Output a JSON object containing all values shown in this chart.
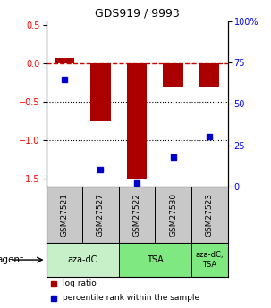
{
  "title": "GDS919 / 9993",
  "samples": [
    "GSM27521",
    "GSM27527",
    "GSM27522",
    "GSM27530",
    "GSM27523"
  ],
  "log_ratio": [
    0.08,
    -0.75,
    -1.5,
    -0.3,
    -0.3
  ],
  "percentile_rank": [
    65,
    10,
    2,
    18,
    30
  ],
  "ylim_left": [
    -1.6,
    0.55
  ],
  "ylim_right": [
    0,
    100
  ],
  "yticks_left": [
    0.5,
    0.0,
    -0.5,
    -1.0,
    -1.5
  ],
  "yticks_right": [
    100,
    75,
    50,
    25,
    0
  ],
  "bar_color": "#aa0000",
  "point_color": "#0000cc",
  "bar_width": 0.55,
  "dashed_line_color": "#cc0000",
  "background_color": "#ffffff",
  "sample_box_color": "#c8c8c8",
  "group_configs": [
    [
      0,
      1,
      "#c8f0c8",
      "aza-dC"
    ],
    [
      2,
      3,
      "#80e880",
      "TSA"
    ],
    [
      4,
      4,
      "#80e880",
      "aza-dC,\nTSA"
    ]
  ],
  "agent_label": "agent",
  "legend_log_ratio": "log ratio",
  "legend_percentile": "percentile rank within the sample"
}
